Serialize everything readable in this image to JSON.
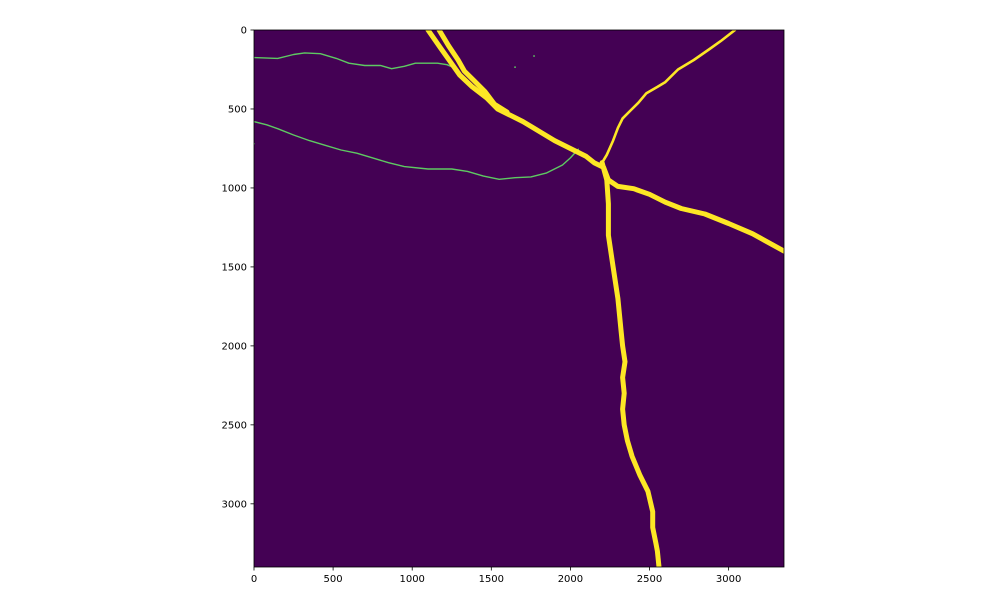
{
  "chart_data": {
    "type": "heatmap",
    "title": "",
    "xlabel": "",
    "ylabel": "",
    "xlim": [
      0,
      3350
    ],
    "ylim": [
      3400,
      0
    ],
    "y_inverted": true,
    "grid": false,
    "colormap": "viridis",
    "colors": {
      "background": "#440154",
      "foreground": "#fde725",
      "thin_feature": "#5ec962"
    },
    "x_ticks": [
      0,
      500,
      1000,
      1500,
      2000,
      2500,
      3000
    ],
    "x_tick_labels": [
      "0",
      "500",
      "1000",
      "1500",
      "2000",
      "2500",
      "3000"
    ],
    "y_ticks": [
      0,
      500,
      1000,
      1500,
      2000,
      2500,
      3000
    ],
    "y_tick_labels": [
      "0",
      "500",
      "1000",
      "1500",
      "2000",
      "2500",
      "3000"
    ],
    "features": [
      {
        "name": "thin-line-upper",
        "class": "thin",
        "points": [
          [
            0,
            175
          ],
          [
            150,
            180
          ],
          [
            250,
            155
          ],
          [
            320,
            145
          ],
          [
            420,
            150
          ],
          [
            520,
            180
          ],
          [
            600,
            210
          ],
          [
            700,
            225
          ],
          [
            800,
            225
          ],
          [
            870,
            245
          ],
          [
            950,
            230
          ],
          [
            1020,
            210
          ],
          [
            1100,
            210
          ],
          [
            1160,
            210
          ],
          [
            1220,
            220
          ],
          [
            1290,
            250
          ]
        ]
      },
      {
        "name": "thin-line-lower",
        "class": "thin",
        "points": [
          [
            0,
            580
          ],
          [
            80,
            600
          ],
          [
            150,
            625
          ],
          [
            250,
            665
          ],
          [
            350,
            700
          ],
          [
            450,
            730
          ],
          [
            550,
            760
          ],
          [
            650,
            780
          ],
          [
            750,
            810
          ],
          [
            850,
            840
          ],
          [
            950,
            865
          ],
          [
            1100,
            880
          ],
          [
            1250,
            880
          ],
          [
            1350,
            895
          ],
          [
            1450,
            925
          ],
          [
            1550,
            945
          ],
          [
            1650,
            935
          ],
          [
            1750,
            930
          ],
          [
            1850,
            905
          ],
          [
            1950,
            855
          ],
          [
            2000,
            810
          ],
          [
            2050,
            755
          ]
        ]
      },
      {
        "name": "thick-diagonal-road",
        "class": "thick",
        "points": [
          [
            1100,
            0
          ],
          [
            1180,
            115
          ],
          [
            1240,
            200
          ],
          [
            1300,
            285
          ],
          [
            1380,
            360
          ],
          [
            1470,
            430
          ],
          [
            1540,
            500
          ],
          [
            1620,
            540
          ],
          [
            1700,
            580
          ],
          [
            1800,
            640
          ],
          [
            1900,
            700
          ],
          [
            2000,
            750
          ],
          [
            2100,
            800
          ],
          [
            2150,
            840
          ],
          [
            2210,
            870
          ],
          [
            2240,
            950
          ],
          [
            2300,
            990
          ],
          [
            2400,
            1005
          ],
          [
            2500,
            1040
          ],
          [
            2600,
            1090
          ],
          [
            2700,
            1130
          ],
          [
            2850,
            1165
          ],
          [
            3000,
            1225
          ],
          [
            3150,
            1290
          ],
          [
            3350,
            1400
          ]
        ]
      },
      {
        "name": "thick-diagonal-road-branch",
        "class": "thick",
        "points": [
          [
            1170,
            0
          ],
          [
            1230,
            100
          ],
          [
            1290,
            190
          ],
          [
            1330,
            260
          ],
          [
            1390,
            320
          ],
          [
            1460,
            390
          ],
          [
            1520,
            470
          ],
          [
            1600,
            520
          ]
        ]
      },
      {
        "name": "road-to-top-right",
        "class": "medium",
        "points": [
          [
            2200,
            840
          ],
          [
            2230,
            790
          ],
          [
            2270,
            700
          ],
          [
            2300,
            620
          ],
          [
            2330,
            560
          ],
          [
            2380,
            510
          ],
          [
            2430,
            460
          ],
          [
            2480,
            400
          ],
          [
            2550,
            360
          ],
          [
            2600,
            330
          ],
          [
            2680,
            250
          ],
          [
            2780,
            190
          ],
          [
            2880,
            120
          ],
          [
            2950,
            70
          ],
          [
            3040,
            0
          ]
        ]
      },
      {
        "name": "vertical-road-south",
        "class": "thick",
        "points": [
          [
            2200,
            840
          ],
          [
            2230,
            950
          ],
          [
            2240,
            1100
          ],
          [
            2240,
            1300
          ],
          [
            2270,
            1500
          ],
          [
            2300,
            1700
          ],
          [
            2320,
            1900
          ],
          [
            2330,
            2000
          ],
          [
            2345,
            2100
          ],
          [
            2330,
            2200
          ],
          [
            2340,
            2300
          ],
          [
            2330,
            2400
          ],
          [
            2340,
            2500
          ],
          [
            2360,
            2600
          ],
          [
            2390,
            2700
          ],
          [
            2440,
            2820
          ],
          [
            2490,
            2920
          ],
          [
            2520,
            3050
          ],
          [
            2520,
            3150
          ],
          [
            2540,
            3250
          ],
          [
            2550,
            3300
          ],
          [
            2560,
            3400
          ]
        ]
      }
    ],
    "specks": [
      [
        1650,
        235
      ],
      [
        1770,
        165
      ],
      [
        0,
        720
      ]
    ]
  }
}
